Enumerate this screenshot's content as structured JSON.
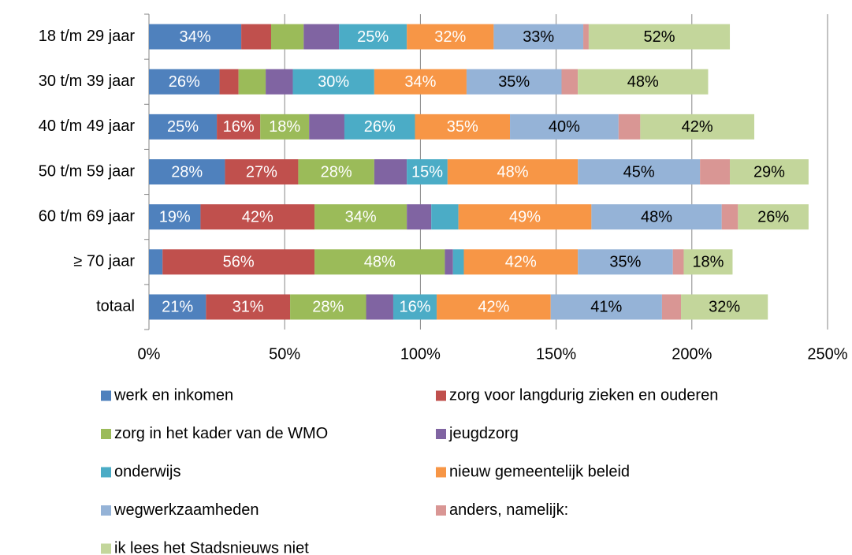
{
  "chart_data": {
    "type": "stacked-bar-horizontal",
    "categories": [
      "18 t/m 29 jaar",
      "30 t/m 39 jaar",
      "40 t/m 49 jaar",
      "50 t/m 59 jaar",
      "60 t/m 69 jaar",
      "≥ 70 jaar",
      "totaal"
    ],
    "xlim": [
      0,
      250
    ],
    "xticks": [
      {
        "value": 0,
        "label": "0%"
      },
      {
        "value": 50,
        "label": "50%"
      },
      {
        "value": 100,
        "label": "100%"
      },
      {
        "value": 150,
        "label": "150%"
      },
      {
        "value": 200,
        "label": "200%"
      },
      {
        "value": 250,
        "label": "250%"
      }
    ],
    "grid": true,
    "legend": "bottom",
    "series": [
      {
        "name": "werk en inkomen",
        "color": "#4f81bd",
        "values": [
          34,
          26,
          25,
          28,
          19,
          5,
          21
        ],
        "value_labels": [
          "34%",
          "26%",
          "25%",
          "28%",
          "19%",
          null,
          "21%"
        ]
      },
      {
        "name": "zorg voor langdurig zieken en ouderen",
        "color": "#c0504d",
        "values": [
          11,
          7,
          16,
          27,
          42,
          56,
          31
        ],
        "value_labels": [
          null,
          null,
          "16%",
          "27%",
          "42%",
          "56%",
          "31%"
        ]
      },
      {
        "name": "zorg in het kader van de WMO",
        "color": "#9bbb59",
        "values": [
          12,
          10,
          18,
          28,
          34,
          48,
          28
        ],
        "value_labels": [
          null,
          null,
          "18%",
          "28%",
          "34%",
          "48%",
          "28%"
        ]
      },
      {
        "name": "jeugdzorg",
        "color": "#8064a2",
        "values": [
          13,
          10,
          13,
          12,
          9,
          3,
          10
        ],
        "value_labels": [
          null,
          null,
          null,
          null,
          null,
          null,
          null
        ]
      },
      {
        "name": "onderwijs",
        "color": "#4bacc6",
        "values": [
          25,
          30,
          26,
          15,
          10,
          4,
          16
        ],
        "value_labels": [
          "25%",
          "30%",
          "26%",
          "15%",
          null,
          null,
          "16%"
        ]
      },
      {
        "name": "nieuw gemeentelijk beleid",
        "color": "#f79646",
        "values": [
          32,
          34,
          35,
          48,
          49,
          42,
          42
        ],
        "value_labels": [
          "32%",
          "34%",
          "35%",
          "48%",
          "49%",
          "42%",
          "42%"
        ]
      },
      {
        "name": "wegwerkzaamheden",
        "color": "#95b3d7",
        "values": [
          33,
          35,
          40,
          45,
          48,
          35,
          41
        ],
        "value_labels": [
          "33%",
          "35%",
          "40%",
          "45%",
          "48%",
          "35%",
          "41%"
        ]
      },
      {
        "name": "anders, namelijk:",
        "color": "#d99694",
        "values": [
          2,
          6,
          8,
          11,
          6,
          4,
          7
        ],
        "value_labels": [
          null,
          null,
          null,
          null,
          null,
          null,
          null
        ]
      },
      {
        "name": "ik lees het Stadsnieuws niet",
        "color": "#c3d69b",
        "values": [
          52,
          48,
          42,
          29,
          26,
          18,
          32
        ],
        "value_labels": [
          "52%",
          "48%",
          "42%",
          "29%",
          "26%",
          "18%",
          "32%"
        ]
      }
    ]
  }
}
